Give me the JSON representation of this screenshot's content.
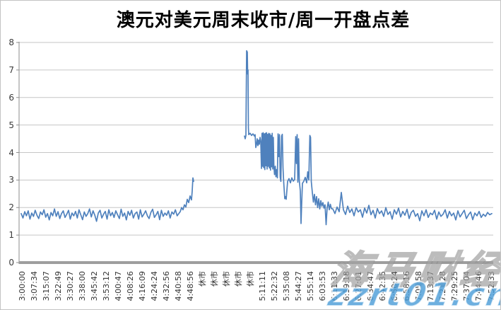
{
  "colors": {
    "series_blue": "#4F81BD",
    "grid_gray": "#C6C6C6",
    "axis_gray": "#8E8E8E",
    "axis_band_gray": "#9E9E9E",
    "label_gray": "#333333",
    "watermark_blue": "#4D9DD8",
    "border_gray": "#C3C3C3"
  },
  "watermarks": {
    "brand": "海马财经",
    "url": "zzrt01.cn"
  },
  "chart_data": {
    "type": "line",
    "title": "澳元对美元周末收市/周一开盘点差",
    "xlabel": "",
    "ylabel": "",
    "ylim": [
      0,
      8
    ],
    "y_ticks": [
      0,
      1,
      2,
      3,
      4,
      5,
      6,
      7,
      8
    ],
    "grid": "horizontal",
    "legend": "none",
    "x_tick_labels": [
      "3:00:00",
      "3:07:34",
      "3:15:07",
      "3:22:49",
      "3:30:27",
      "3:38:00",
      "3:45:42",
      "3:53:12",
      "4:00:47",
      "4:08:26",
      "4:16:09",
      "4:24:24",
      "4:32:56",
      "4:40:58",
      "4:48:56",
      "休市",
      "休市",
      "休市",
      "休市",
      "休市",
      "5:11:11",
      "5:22:32",
      "5:35:08",
      "5:44:27",
      "5:55:14",
      "6:03:53",
      "6:11:33",
      "6:19:18",
      "6:27:01",
      "6:34:47",
      "6:42:35",
      "6:50:24",
      "6:58:16",
      "7:05:58",
      "7:13:37",
      "7:21:28",
      "7:29:25",
      "7:37:04",
      "7:44:46",
      "7:52:33"
    ],
    "market_closed_label": "休市",
    "gap_note": "no data plotted during the five 休市 (market closed) categories",
    "series": [
      {
        "name": "周末收市/周一开盘点差",
        "color": "#4F81BD",
        "runs": [
          [
            {
              "x0": 2,
              "dx": 2.48,
              "v": [
                1.78,
                1.62,
                1.85,
                1.7,
                1.88,
                1.58,
                1.8,
                1.68,
                1.9,
                1.72,
                1.6,
                1.84,
                1.74,
                1.92,
                1.65,
                1.78,
                1.55,
                1.82,
                1.7,
                1.95,
                1.68,
                1.85,
                1.6,
                1.78,
                1.88,
                1.64,
                1.76,
                1.9,
                1.58,
                1.8,
                1.7,
                1.86,
                1.62,
                1.92,
                1.74,
                1.56,
                1.84,
                1.68,
                1.78,
                1.95,
                1.66,
                1.88,
                1.72,
                1.5,
                1.8,
                1.9,
                1.62,
                1.76,
                1.86,
                1.58,
                1.92,
                1.7,
                1.82,
                1.64,
                1.88,
                1.74,
                1.6,
                1.94,
                1.68,
                1.8,
                1.55,
                1.86,
                1.72,
                1.9,
                1.62,
                1.78,
                1.84,
                1.58,
                1.92,
                1.66,
                1.76,
                1.88,
                1.7,
                1.6,
                1.82,
                1.94,
                1.64,
                1.74,
                1.86,
                1.56,
                1.9,
                1.68,
                1.8,
                1.72,
                1.88,
                1.62,
                1.84,
                1.76,
                1.92,
                1.7
              ]
            },
            {
              "pts": [
                [
                  227,
                  1.85
                ],
                [
                  229,
                  2.0
                ],
                [
                  231,
                  1.92
                ],
                [
                  233,
                  2.1
                ],
                [
                  235,
                  2.02
                ],
                [
                  237,
                  2.3
                ],
                [
                  239,
                  2.18
                ],
                [
                  241,
                  2.42
                ],
                [
                  243,
                  2.28
                ],
                [
                  244,
                  2.6
                ],
                [
                  245,
                  3.08
                ],
                [
                  246,
                  2.95
                ]
              ]
            }
          ],
          [
            {
              "pts": [
                [
                  318,
                  4.6
                ],
                [
                  319,
                  4.5
                ],
                [
                  320,
                  4.62
                ],
                [
                  321,
                  7.7
                ],
                [
                  322,
                  7.65
                ],
                [
                  322.5,
                  6.85
                ],
                [
                  323,
                  7.0
                ],
                [
                  323.5,
                  4.9
                ],
                [
                  324,
                  4.65
                ],
                [
                  326,
                  4.7
                ],
                [
                  328,
                  4.62
                ],
                [
                  330,
                  4.68
                ],
                [
                  332,
                  4.6
                ],
                [
                  333,
                  4.65
                ],
                [
                  334,
                  4.18
                ],
                [
                  335,
                  4.3
                ],
                [
                  336,
                  4.5
                ],
                [
                  337,
                  4.25
                ],
                [
                  338,
                  4.45
                ],
                [
                  339,
                  4.3
                ],
                [
                  340,
                  4.55
                ],
                [
                  341,
                  4.4
                ],
                [
                  342,
                  3.42
                ],
                [
                  342.8,
                  4.7
                ],
                [
                  343.6,
                  3.5
                ],
                [
                  344.4,
                  4.72
                ],
                [
                  345.2,
                  3.45
                ],
                [
                  346,
                  4.68
                ],
                [
                  346.8,
                  3.38
                ],
                [
                  347.6,
                  4.7
                ],
                [
                  348.4,
                  3.52
                ],
                [
                  349.2,
                  4.72
                ],
                [
                  350,
                  3.4
                ],
                [
                  350.8,
                  4.66
                ],
                [
                  351.6,
                  3.5
                ],
                [
                  352.4,
                  4.7
                ],
                [
                  353.2,
                  3.44
                ],
                [
                  354,
                  4.68
                ],
                [
                  354.8,
                  3.36
                ],
                [
                  355.6,
                  4.62
                ],
                [
                  356.4,
                  3.48
                ],
                [
                  357.2,
                  4.7
                ],
                [
                  358,
                  3.4
                ],
                [
                  358.8,
                  4.55
                ],
                [
                  359.6,
                  3.5
                ],
                [
                  360.5,
                  3.2
                ],
                [
                  361.5,
                  3.5
                ],
                [
                  362.5,
                  3.12
                ],
                [
                  363.5,
                  3.38
                ],
                [
                  364.5,
                  3.08
                ],
                [
                  365.5,
                  4.68
                ],
                [
                  366.5,
                  3.85
                ],
                [
                  367.5,
                  4.65
                ],
                [
                  368.5,
                  3.1
                ],
                [
                  369.5,
                  2.95
                ],
                [
                  370.5,
                  4.6
                ],
                [
                  371.5,
                  4.66
                ],
                [
                  372.5,
                  3.45
                ],
                [
                  373.5,
                  2.92
                ],
                [
                  375,
                  2.32
                ],
                [
                  376,
                  2.4
                ],
                [
                  377,
                  2.3
                ],
                [
                  379,
                  2.95
                ],
                [
                  381,
                  3.05
                ],
                [
                  383,
                  2.9
                ],
                [
                  385,
                  3.08
                ],
                [
                  387,
                  2.96
                ],
                [
                  389,
                  3.02
                ],
                [
                  390.5,
                  4.58
                ],
                [
                  391.5,
                  3.6
                ],
                [
                  392.5,
                  4.65
                ],
                [
                  393.5,
                  2.92
                ],
                [
                  394.5,
                  4.5
                ],
                [
                  395.5,
                  3.0
                ],
                [
                  397,
                  2.6
                ],
                [
                  398,
                  1.42
                ],
                [
                  399,
                  2.2
                ],
                [
                  400,
                  2.88
                ],
                [
                  402,
                  2.96
                ],
                [
                  404,
                  3.1
                ],
                [
                  406,
                  2.9
                ],
                [
                  407.5,
                  3.3
                ],
                [
                  409,
                  3.0
                ],
                [
                  410.5,
                  4.62
                ],
                [
                  411.5,
                  4.55
                ],
                [
                  412.5,
                  2.95
                ],
                [
                  414,
                  2.55
                ],
                [
                  415.5,
                  2.2
                ],
                [
                  417,
                  2.48
                ],
                [
                  418.5,
                  2.1
                ],
                [
                  420,
                  2.4
                ],
                [
                  421.5,
                  2.0
                ],
                [
                  423,
                  2.32
                ],
                [
                  424.5,
                  1.95
                ],
                [
                  426,
                  2.25
                ],
                [
                  427.5,
                  2.05
                ],
                [
                  429,
                  2.18
                ],
                [
                  430.5,
                  1.98
                ],
                [
                  432,
                  2.1
                ],
                [
                  433.5,
                  1.38
                ],
                [
                  435,
                  2.0
                ],
                [
                  436.5,
                  2.2
                ],
                [
                  438,
                  1.92
                ],
                [
                  439.5,
                  2.12
                ],
                [
                  441,
                  1.96
                ]
              ]
            },
            {
              "x0": 443,
              "dx": 3,
              "v": [
                1.95,
                1.78,
                2.02,
                1.85,
                2.55,
                1.92,
                1.75,
                2.05,
                1.82,
                1.95,
                1.7,
                2.0,
                1.84,
                1.92,
                1.65,
                1.98,
                1.8,
                2.08,
                1.74,
                1.9,
                1.62,
                1.96,
                1.78,
                1.88,
                1.68,
                2.0,
                1.75,
                1.85,
                1.58,
                1.92,
                1.76,
                1.98,
                1.66,
                1.86,
                1.72,
                1.94,
                1.6,
                1.82,
                1.9,
                1.68,
                1.78,
                1.52,
                1.88,
                1.7,
                1.92,
                1.64,
                1.8,
                1.74,
                1.9,
                1.58,
                1.84,
                1.68,
                1.76,
                1.92,
                1.62,
                1.86,
                1.7,
                1.8,
                1.55,
                1.88,
                1.66,
                1.78,
                1.9,
                1.6,
                1.74,
                1.84,
                1.56,
                1.8,
                1.7,
                1.86,
                1.64,
                1.76,
                1.68,
                1.82,
                1.74,
                1.78
              ]
            }
          ]
        ]
      }
    ]
  }
}
